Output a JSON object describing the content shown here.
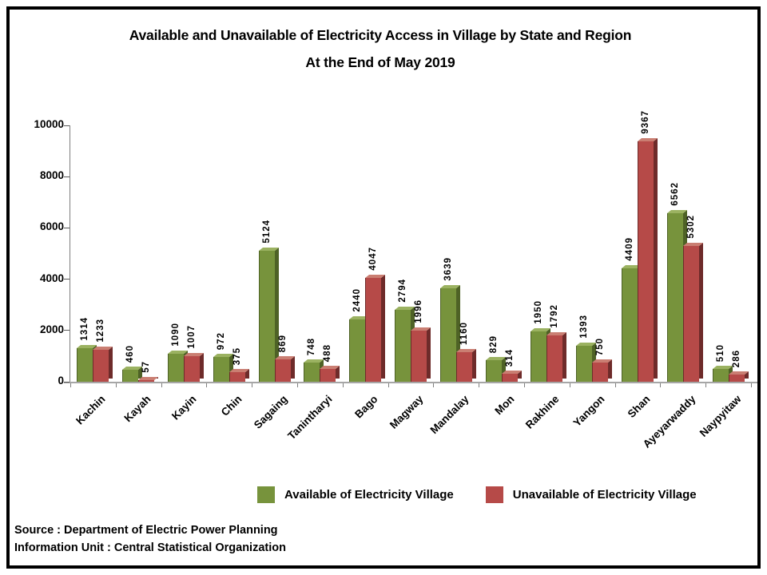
{
  "title": {
    "line1": "Available and Unavailable of Electricity Access in Village by State and Region",
    "line2": "At the End of May 2019"
  },
  "chart_data": {
    "type": "bar",
    "categories": [
      "Kachin",
      "Kayah",
      "Kayin",
      "Chin",
      "Sagaing",
      "Tanintharyi",
      "Bago",
      "Magway",
      "Mandalay",
      "Mon",
      "Rakhine",
      "Yangon",
      "Shan",
      "Ayeyarwaddy",
      "Naypyitaw"
    ],
    "series": [
      {
        "name": "Available of Electricity Village",
        "color": "#77933C",
        "color_light": "#9BB261",
        "color_dark": "#4E6226",
        "values": [
          1314,
          460,
          1090,
          972,
          5124,
          748,
          2440,
          2794,
          3639,
          829,
          1950,
          1393,
          4409,
          6562,
          510
        ]
      },
      {
        "name": "Unavailable of Electricity Village",
        "color": "#B64A48",
        "color_light": "#CA7E72",
        "color_dark": "#6E2B2A",
        "values": [
          1233,
          57,
          1007,
          375,
          869,
          488,
          4047,
          1996,
          1160,
          314,
          1792,
          750,
          9367,
          5302,
          286
        ]
      }
    ],
    "ylim": [
      0,
      10000
    ],
    "yticks": [
      0,
      2000,
      4000,
      6000,
      8000,
      10000
    ],
    "grid": false,
    "legend_position": "bottom",
    "value_labels": true,
    "bar_style": "3d-clustered-column"
  },
  "footer": {
    "source_line1": "Source : Department of Electric Power Planning",
    "source_line2": "Information Unit : Central Statistical Organization"
  }
}
